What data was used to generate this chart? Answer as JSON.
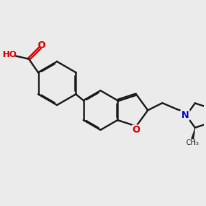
{
  "bg_color": "#ebebeb",
  "bond_color": "#1a1a1a",
  "bond_width": 1.8,
  "dbo": 0.038,
  "O_color": "#dd0000",
  "N_color": "#0000cc",
  "font_size": 10,
  "fig_size": [
    3.0,
    3.0
  ],
  "dpi": 100,
  "xlim": [
    -1.0,
    8.5
  ],
  "ylim": [
    -2.5,
    5.0
  ]
}
